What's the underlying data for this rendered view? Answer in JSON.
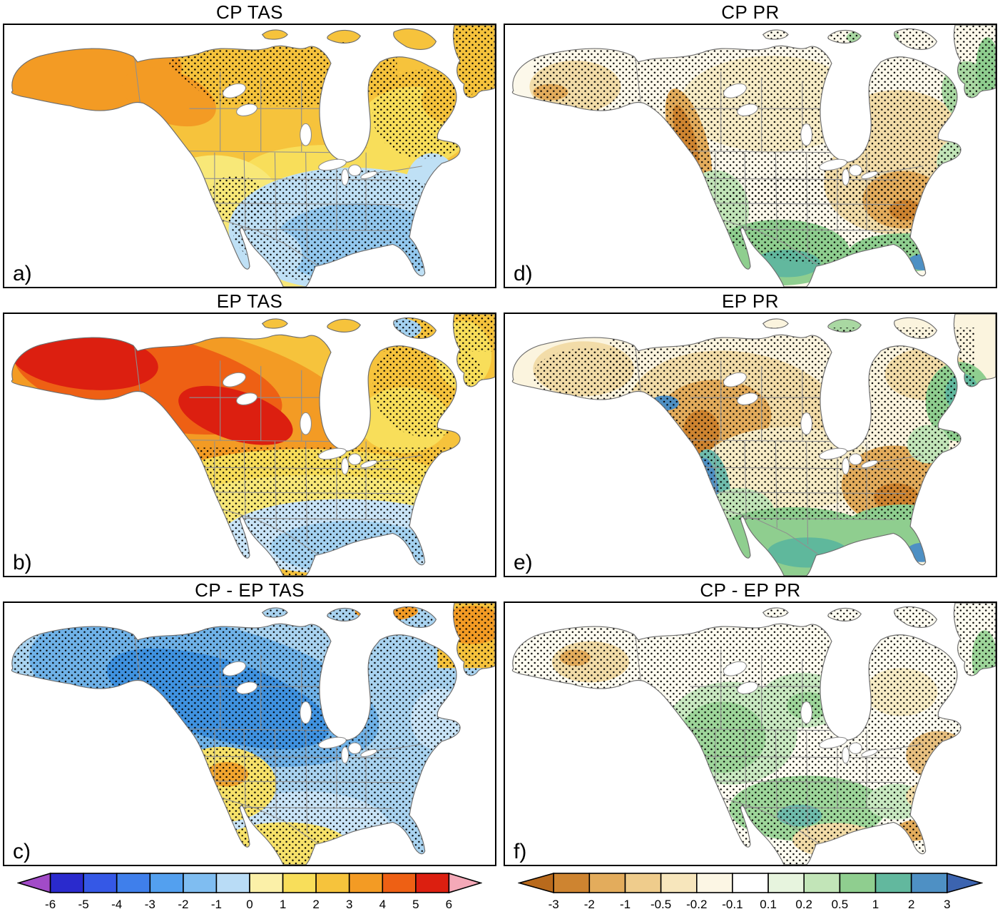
{
  "panels": [
    {
      "label": "a)",
      "title": "CP TAS"
    },
    {
      "label": "d)",
      "title": "CP PR"
    },
    {
      "label": "b)",
      "title": "EP TAS"
    },
    {
      "label": "e)",
      "title": "EP PR"
    },
    {
      "label": "c)",
      "title": "CP - EP TAS"
    },
    {
      "label": "f)",
      "title": "CP - EP PR"
    }
  ],
  "colorbars": {
    "tas": {
      "name": "temperature-anomaly-scale",
      "ticks": [
        "-6",
        "-5",
        "-4",
        "-3",
        "-2",
        "-1",
        "0",
        "1",
        "2",
        "3",
        "4",
        "5",
        "6"
      ],
      "colors": [
        "#A24BC8",
        "#2A2ACD",
        "#3558E6",
        "#3F7FEB",
        "#53A0EF",
        "#7FBDF1",
        "#B9DCF6",
        "#FBF0A8",
        "#F8DE5A",
        "#F6C33C",
        "#F39B24",
        "#EE6014",
        "#DC1F10",
        "#F4A9B8"
      ]
    },
    "pr": {
      "name": "precipitation-anomaly-scale",
      "ticks": [
        "-3",
        "-2",
        "-1",
        "-0.5",
        "-0.2",
        "-0.1",
        "0.1",
        "0.2",
        "0.5",
        "1",
        "2",
        "3"
      ],
      "colors": [
        "#B96A1C",
        "#CE8430",
        "#E3AC5C",
        "#EFCC8C",
        "#F7E6BC",
        "#FCF6E4",
        "#FFFFFF",
        "#E7F4DE",
        "#C2E5B8",
        "#8FCE8F",
        "#62B89E",
        "#4E90C4",
        "#3C64B0"
      ]
    }
  },
  "chart_data": {
    "type": "heatmap",
    "description": "Six-panel North America map figure of composite anomalies with significance stippling. Left column: surface air temperature (TAS); right column: precipitation (PR). Rows: CP events, EP events, CP minus EP difference.",
    "panels": [
      {
        "label": "a)",
        "title": "CP TAS",
        "pattern": "Warm anomalies (1 to 4) over Alaska and most of Canada, strongest (3-4) over Alaska/Yukon; weak cool anomalies (-2 to 0) over the southern and southeastern United States; stippling over central Canada, the Northeast and the Southeast."
      },
      {
        "label": "d)",
        "title": "CP PR",
        "pattern": "Dry anomalies along the British Columbia coast and over the central-eastern US; wet anomalies over the Southwest, Mexico, Gulf/Southeast coast and parts of northeastern Canada; dense stippling over Canada and the central US."
      },
      {
        "label": "b)",
        "title": "EP TAS",
        "pattern": "Strong warm anomalies (4 to 6) stretching from Alaska across northwestern and central Canada; moderate warmth elsewhere; weak cool anomalies (-1 to 0) along the Gulf coast; stippling over the southern and eastern portions."
      },
      {
        "label": "e)",
        "title": "EP PR",
        "pattern": "Dry anomalies over western Canada and the northern plains with a dry core in British Columbia; wet anomalies along the California coast, over Mexico, the Gulf/Southeast (wettest over Florida) and eastern Canada."
      },
      {
        "label": "c)",
        "title": "CP - EP TAS",
        "pattern": "Negative differences (-4 to -1) over Alaska and most of Canada; positive differences (1 to 3) over the southwestern US and far northeastern Canada/Greenland; stippling nearly everywhere."
      },
      {
        "label": "f)",
        "title": "CP - EP PR",
        "pattern": "Mostly weak differences; positive (green) patches over the western interior and south-central region; negative (brown) patches over Alaska, eastern Quebec, the Southeast and northern Mexico; dense stippling."
      }
    ],
    "colorbar_tas": {
      "ticks": [
        -6,
        -5,
        -4,
        -3,
        -2,
        -1,
        0,
        1,
        2,
        3,
        4,
        5,
        6
      ]
    },
    "colorbar_pr": {
      "ticks": [
        -3,
        -2,
        -1,
        -0.5,
        -0.2,
        -0.1,
        0.1,
        0.2,
        0.5,
        1,
        2,
        3
      ]
    }
  }
}
